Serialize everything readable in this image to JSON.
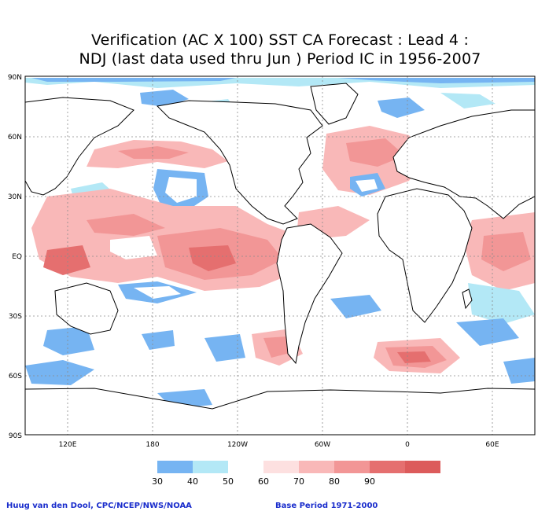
{
  "title": {
    "line1": "Verification (AC X 100) SST CA Forecast : Lead 4 :",
    "line2": "NDJ (last data used thru Jun ) Period IC in 1956-2007"
  },
  "axes": {
    "lat_labels": [
      "90N",
      "60N",
      "30N",
      "EQ",
      "30S",
      "60S",
      "90S"
    ],
    "lon_labels": [
      "120E",
      "180",
      "120W",
      "60W",
      "0",
      "60E"
    ]
  },
  "legend": {
    "levels": [
      "30",
      "40",
      "50",
      "60",
      "70",
      "80",
      "90"
    ],
    "colors": [
      "#76b4f2",
      "#b3e8f6",
      "#ffffff",
      "#fde0e0",
      "#f9b8b8",
      "#f29696",
      "#e56f6f",
      "#dc5b5b"
    ]
  },
  "credits": {
    "left": "Huug van den Dool, CPC/NCEP/NWS/NOAA",
    "right": "Base Period 1971-2000"
  },
  "palette": {
    "land_fill": "#ffffff",
    "coast": "#000000",
    "grid": "#8a8a8a"
  }
}
